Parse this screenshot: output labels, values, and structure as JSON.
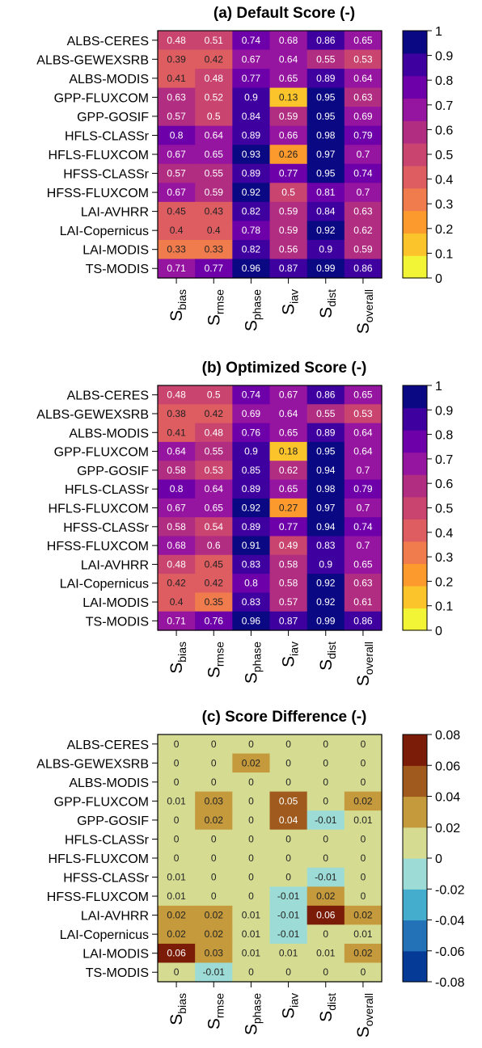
{
  "chart_data": [
    {
      "type": "heatmap",
      "title": "(a) Default Score (-)",
      "rows": [
        "ALBS-CERES",
        "ALBS-GEWEXSRB",
        "ALBS-MODIS",
        "GPP-FLUXCOM",
        "GPP-GOSIF",
        "HFLS-CLASSr",
        "HFLS-FLUXCOM",
        "HFSS-CLASSr",
        "HFSS-FLUXCOM",
        "LAI-AVHRR",
        "LAI-Copernicus",
        "LAI-MODIS",
        "TS-MODIS"
      ],
      "columns": [
        {
          "main": "S",
          "sub": "bias"
        },
        {
          "main": "S",
          "sub": "rmse"
        },
        {
          "main": "S",
          "sub": "phase"
        },
        {
          "main": "S",
          "sub": "iav"
        },
        {
          "main": "S",
          "sub": "dist"
        },
        {
          "main": "S",
          "sub": "overall"
        }
      ],
      "values": [
        [
          0.48,
          0.51,
          0.74,
          0.68,
          0.86,
          0.65
        ],
        [
          0.39,
          0.42,
          0.67,
          0.64,
          0.55,
          0.53
        ],
        [
          0.41,
          0.48,
          0.77,
          0.65,
          0.89,
          0.64
        ],
        [
          0.63,
          0.52,
          0.9,
          0.13,
          0.95,
          0.63
        ],
        [
          0.57,
          0.5,
          0.84,
          0.59,
          0.95,
          0.69
        ],
        [
          0.8,
          0.64,
          0.89,
          0.66,
          0.98,
          0.79
        ],
        [
          0.67,
          0.65,
          0.93,
          0.26,
          0.97,
          0.7
        ],
        [
          0.57,
          0.55,
          0.89,
          0.77,
          0.95,
          0.74
        ],
        [
          0.67,
          0.59,
          0.92,
          0.5,
          0.81,
          0.7
        ],
        [
          0.45,
          0.43,
          0.82,
          0.59,
          0.84,
          0.63
        ],
        [
          0.4,
          0.4,
          0.78,
          0.59,
          0.92,
          0.62
        ],
        [
          0.33,
          0.33,
          0.82,
          0.56,
          0.9,
          0.59
        ],
        [
          0.71,
          0.77,
          0.96,
          0.87,
          0.99,
          0.86
        ]
      ],
      "labels": [
        [
          "0.48",
          "0.51",
          "0.74",
          "0.68",
          "0.86",
          "0.65"
        ],
        [
          "0.39",
          "0.42",
          "0.67",
          "0.64",
          "0.55",
          "0.53"
        ],
        [
          "0.41",
          "0.48",
          "0.77",
          "0.65",
          "0.89",
          "0.64"
        ],
        [
          "0.63",
          "0.52",
          "0.9",
          "0.13",
          "0.95",
          "0.63"
        ],
        [
          "0.57",
          "0.5",
          "0.84",
          "0.59",
          "0.95",
          "0.69"
        ],
        [
          "0.8",
          "0.64",
          "0.89",
          "0.66",
          "0.98",
          "0.79"
        ],
        [
          "0.67",
          "0.65",
          "0.93",
          "0.26",
          "0.97",
          "0.7"
        ],
        [
          "0.57",
          "0.55",
          "0.89",
          "0.77",
          "0.95",
          "0.74"
        ],
        [
          "0.67",
          "0.59",
          "0.92",
          "0.5",
          "0.81",
          "0.7"
        ],
        [
          "0.45",
          "0.43",
          "0.82",
          "0.59",
          "0.84",
          "0.63"
        ],
        [
          "0.4",
          "0.4",
          "0.78",
          "0.59",
          "0.92",
          "0.62"
        ],
        [
          "0.33",
          "0.33",
          "0.82",
          "0.56",
          "0.9",
          "0.59"
        ],
        [
          "0.71",
          "0.77",
          "0.96",
          "0.87",
          "0.99",
          "0.86"
        ]
      ],
      "colorbar": {
        "min": 0,
        "max": 1,
        "ticks": [
          "0",
          "0.1",
          "0.2",
          "0.3",
          "0.4",
          "0.5",
          "0.6",
          "0.7",
          "0.8",
          "0.9",
          "1"
        ],
        "colors": [
          "#f2f535",
          "#fcc42b",
          "#fc9a2e",
          "#f07b4d",
          "#dd5d61",
          "#c9446f",
          "#b12d82",
          "#9514a0",
          "#6d00a8",
          "#3f00a0",
          "#0b0883"
        ]
      }
    },
    {
      "type": "heatmap",
      "title": "(b) Optimized Score (-)",
      "rows": [
        "ALBS-CERES",
        "ALBS-GEWEXSRB",
        "ALBS-MODIS",
        "GPP-FLUXCOM",
        "GPP-GOSIF",
        "HFLS-CLASSr",
        "HFLS-FLUXCOM",
        "HFSS-CLASSr",
        "HFSS-FLUXCOM",
        "LAI-AVHRR",
        "LAI-Copernicus",
        "LAI-MODIS",
        "TS-MODIS"
      ],
      "columns": [
        {
          "main": "S",
          "sub": "bias"
        },
        {
          "main": "S",
          "sub": "rmse"
        },
        {
          "main": "S",
          "sub": "phase"
        },
        {
          "main": "S",
          "sub": "iav"
        },
        {
          "main": "S",
          "sub": "dist"
        },
        {
          "main": "S",
          "sub": "overall"
        }
      ],
      "values": [
        [
          0.48,
          0.5,
          0.74,
          0.67,
          0.86,
          0.65
        ],
        [
          0.38,
          0.42,
          0.69,
          0.64,
          0.55,
          0.53
        ],
        [
          0.41,
          0.48,
          0.76,
          0.65,
          0.89,
          0.64
        ],
        [
          0.64,
          0.55,
          0.9,
          0.18,
          0.95,
          0.64
        ],
        [
          0.58,
          0.53,
          0.85,
          0.62,
          0.94,
          0.7
        ],
        [
          0.8,
          0.64,
          0.89,
          0.65,
          0.98,
          0.79
        ],
        [
          0.67,
          0.65,
          0.92,
          0.27,
          0.97,
          0.7
        ],
        [
          0.58,
          0.54,
          0.89,
          0.77,
          0.94,
          0.74
        ],
        [
          0.68,
          0.6,
          0.91,
          0.49,
          0.83,
          0.7
        ],
        [
          0.48,
          0.45,
          0.83,
          0.58,
          0.9,
          0.65
        ],
        [
          0.42,
          0.42,
          0.8,
          0.58,
          0.92,
          0.63
        ],
        [
          0.4,
          0.35,
          0.83,
          0.57,
          0.92,
          0.61
        ],
        [
          0.71,
          0.76,
          0.96,
          0.87,
          0.99,
          0.86
        ]
      ],
      "labels": [
        [
          "0.48",
          "0.5",
          "0.74",
          "0.67",
          "0.86",
          "0.65"
        ],
        [
          "0.38",
          "0.42",
          "0.69",
          "0.64",
          "0.55",
          "0.53"
        ],
        [
          "0.41",
          "0.48",
          "0.76",
          "0.65",
          "0.89",
          "0.64"
        ],
        [
          "0.64",
          "0.55",
          "0.9",
          "0.18",
          "0.95",
          "0.64"
        ],
        [
          "0.58",
          "0.53",
          "0.85",
          "0.62",
          "0.94",
          "0.7"
        ],
        [
          "0.8",
          "0.64",
          "0.89",
          "0.65",
          "0.98",
          "0.79"
        ],
        [
          "0.67",
          "0.65",
          "0.92",
          "0.27",
          "0.97",
          "0.7"
        ],
        [
          "0.58",
          "0.54",
          "0.89",
          "0.77",
          "0.94",
          "0.74"
        ],
        [
          "0.68",
          "0.6",
          "0.91",
          "0.49",
          "0.83",
          "0.7"
        ],
        [
          "0.48",
          "0.45",
          "0.83",
          "0.58",
          "0.9",
          "0.65"
        ],
        [
          "0.42",
          "0.42",
          "0.8",
          "0.58",
          "0.92",
          "0.63"
        ],
        [
          "0.4",
          "0.35",
          "0.83",
          "0.57",
          "0.92",
          "0.61"
        ],
        [
          "0.71",
          "0.76",
          "0.96",
          "0.87",
          "0.99",
          "0.86"
        ]
      ],
      "colorbar": {
        "min": 0,
        "max": 1,
        "ticks": [
          "0",
          "0.1",
          "0.2",
          "0.3",
          "0.4",
          "0.5",
          "0.6",
          "0.7",
          "0.8",
          "0.9",
          "1"
        ],
        "colors": [
          "#f2f535",
          "#fcc42b",
          "#fc9a2e",
          "#f07b4d",
          "#dd5d61",
          "#c9446f",
          "#b12d82",
          "#9514a0",
          "#6d00a8",
          "#3f00a0",
          "#0b0883"
        ]
      }
    },
    {
      "type": "heatmap",
      "title": "(c) Score Difference (-)",
      "rows": [
        "ALBS-CERES",
        "ALBS-GEWEXSRB",
        "ALBS-MODIS",
        "GPP-FLUXCOM",
        "GPP-GOSIF",
        "HFLS-CLASSr",
        "HFLS-FLUXCOM",
        "HFSS-CLASSr",
        "HFSS-FLUXCOM",
        "LAI-AVHRR",
        "LAI-Copernicus",
        "LAI-MODIS",
        "TS-MODIS"
      ],
      "columns": [
        {
          "main": "S",
          "sub": "bias"
        },
        {
          "main": "S",
          "sub": "rmse"
        },
        {
          "main": "S",
          "sub": "phase"
        },
        {
          "main": "S",
          "sub": "iav"
        },
        {
          "main": "S",
          "sub": "dist"
        },
        {
          "main": "S",
          "sub": "overall"
        }
      ],
      "values": [
        [
          0,
          0,
          0,
          0,
          0,
          0
        ],
        [
          0,
          0,
          0.02,
          0,
          0,
          0
        ],
        [
          0,
          0,
          0,
          0,
          0,
          0
        ],
        [
          0.01,
          0.03,
          0,
          0.05,
          0,
          0.02
        ],
        [
          0,
          0.02,
          0,
          0.04,
          -0.01,
          0.01
        ],
        [
          0,
          0,
          0,
          0,
          0,
          0
        ],
        [
          0,
          0,
          0,
          0,
          0,
          0
        ],
        [
          0.01,
          0,
          0,
          0,
          -0.01,
          0
        ],
        [
          0.01,
          0,
          0,
          -0.01,
          0.02,
          0
        ],
        [
          0.02,
          0.02,
          0.01,
          -0.01,
          0.06,
          0.02
        ],
        [
          0.02,
          0.02,
          0.01,
          -0.01,
          0,
          0.01
        ],
        [
          0.06,
          0.03,
          0.01,
          0.01,
          0.01,
          0.02
        ],
        [
          0,
          -0.01,
          0,
          0,
          0,
          0
        ]
      ],
      "labels": [
        [
          "0",
          "0",
          "0",
          "0",
          "0",
          "0"
        ],
        [
          "0",
          "0",
          "0.02",
          "0",
          "0",
          "0"
        ],
        [
          "0",
          "0",
          "0",
          "0",
          "0",
          "0"
        ],
        [
          "0.01",
          "0.03",
          "0",
          "0.05",
          "0",
          "0.02"
        ],
        [
          "0",
          "0.02",
          "0",
          "0.04",
          "-0.01",
          "0.01"
        ],
        [
          "0",
          "0",
          "0",
          "0",
          "0",
          "0"
        ],
        [
          "0",
          "0",
          "0",
          "0",
          "0",
          "0"
        ],
        [
          "0.01",
          "0",
          "0",
          "0",
          "-0.01",
          "0"
        ],
        [
          "0.01",
          "0",
          "0",
          "-0.01",
          "0.02",
          "0"
        ],
        [
          "0.02",
          "0.02",
          "0.01",
          "-0.01",
          "0.06",
          "0.02"
        ],
        [
          "0.02",
          "0.02",
          "0.01",
          "-0.01",
          "0",
          "0.01"
        ],
        [
          "0.06",
          "0.03",
          "0.01",
          "0.01",
          "0.01",
          "0.02"
        ],
        [
          "0",
          "-0.01",
          "0",
          "0",
          "0",
          "0"
        ]
      ],
      "colorbar": {
        "min": -0.08,
        "max": 0.08,
        "ticks": [
          "-0.08",
          "-0.06",
          "-0.04",
          "-0.02",
          "0",
          "0.02",
          "0.04",
          "0.06",
          "0.08"
        ],
        "colors": [
          "#053a97",
          "#2372b7",
          "#44adce",
          "#9ddcd6",
          "#d5dc92",
          "#c59a3c",
          "#a05a1d",
          "#7a1c08"
        ]
      }
    }
  ]
}
